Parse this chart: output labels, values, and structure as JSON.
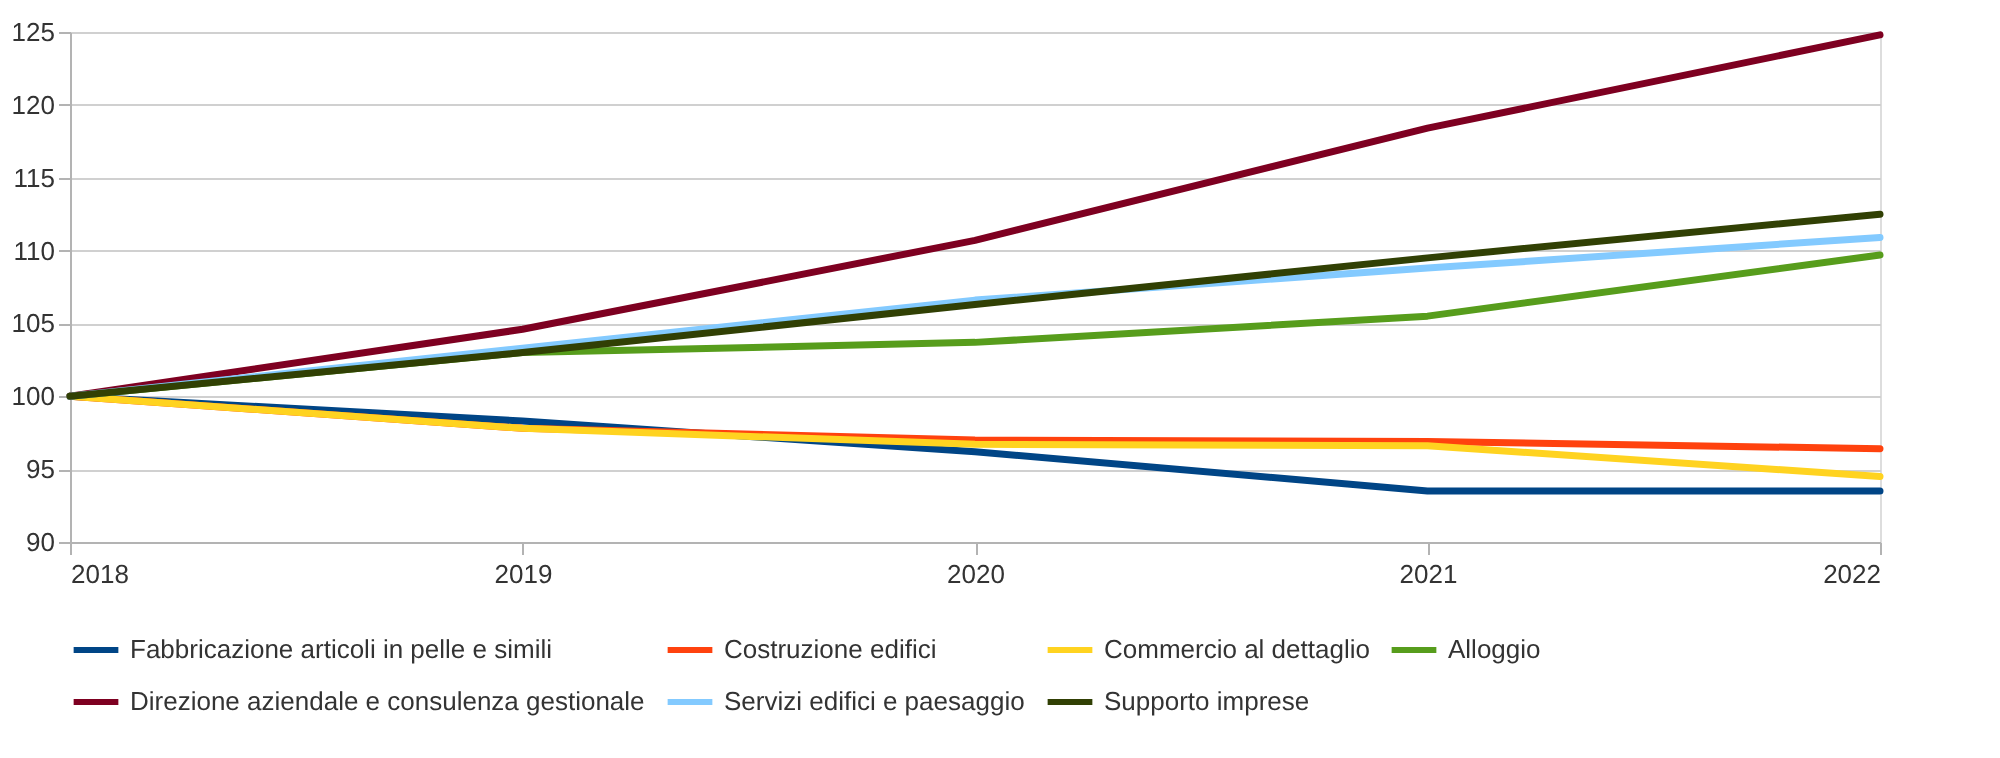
{
  "chart_data": {
    "type": "line",
    "x": [
      2018,
      2019,
      2020,
      2021,
      2022
    ],
    "xlim": [
      2018,
      2022
    ],
    "xticks": [
      2018,
      2019,
      2020,
      2021,
      2022
    ],
    "ylim": [
      90,
      125
    ],
    "yticks": [
      90,
      95,
      100,
      105,
      110,
      115,
      120,
      125
    ],
    "grid": "y",
    "legend": "bottom",
    "marker": "none",
    "line_style": "solid",
    "series": [
      {
        "name": "Fabbricazione articoli in pelle e simili",
        "color": "#004586",
        "values": [
          100,
          98.3,
          96.2,
          93.5,
          93.5
        ]
      },
      {
        "name": "Costruzione edifici",
        "color": "#ff420e",
        "values": [
          100,
          97.8,
          97.0,
          96.9,
          96.4
        ]
      },
      {
        "name": "Commercio al dettaglio",
        "color": "#ffd320",
        "values": [
          100,
          97.8,
          96.7,
          96.6,
          94.5
        ]
      },
      {
        "name": "Alloggio",
        "color": "#579d1c",
        "values": [
          100,
          103.0,
          103.7,
          105.5,
          109.7
        ]
      },
      {
        "name": "Direzione aziendale e consulenza gestionale",
        "color": "#7e0021",
        "values": [
          100,
          104.6,
          110.7,
          118.4,
          124.8
        ]
      },
      {
        "name": "Servizi edifici e paesaggio",
        "color": "#83caff",
        "values": [
          100,
          103.3,
          106.6,
          108.8,
          110.9
        ]
      },
      {
        "name": "Supporto imprese",
        "color": "#314004",
        "values": [
          100,
          103.0,
          106.3,
          109.5,
          112.5
        ]
      }
    ]
  }
}
